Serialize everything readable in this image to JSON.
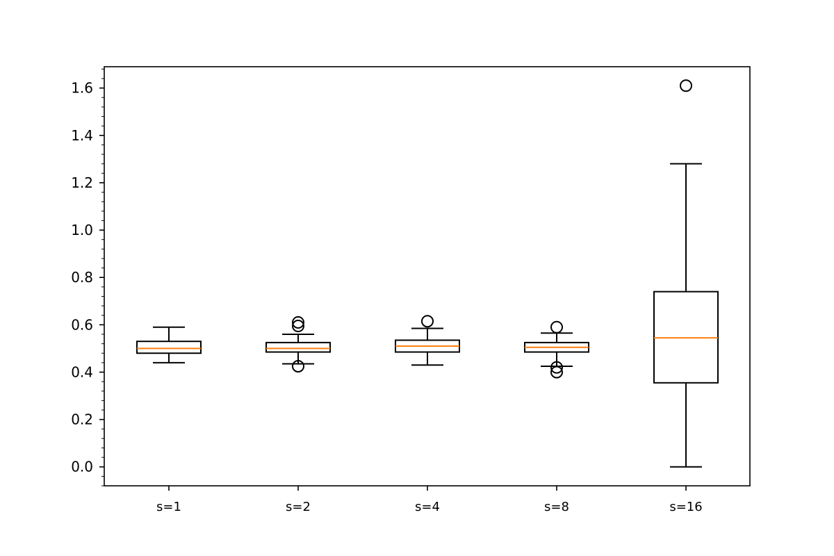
{
  "chart_data": {
    "type": "box",
    "title": "",
    "xlabel": "",
    "ylabel": "",
    "categories": [
      "s=1",
      "s=2",
      "s=4",
      "s=8",
      "s=16"
    ],
    "ylim": [
      -0.08,
      1.69
    ],
    "yticks": [
      0.0,
      0.2,
      0.4,
      0.6,
      0.8,
      1.0,
      1.2,
      1.4,
      1.6
    ],
    "ytick_labels": [
      "0.0",
      "0.2",
      "0.4",
      "0.6",
      "0.8",
      "1.0",
      "1.2",
      "1.4",
      "1.6"
    ],
    "minor_ytick_step": 0.04,
    "grid": false,
    "boxes": [
      {
        "label": "s=1",
        "whisker_low": 0.44,
        "q1": 0.48,
        "median": 0.5,
        "q3": 0.53,
        "whisker_high": 0.59,
        "outliers": []
      },
      {
        "label": "s=2",
        "whisker_low": 0.435,
        "q1": 0.485,
        "median": 0.5,
        "q3": 0.525,
        "whisker_high": 0.56,
        "outliers": [
          0.425,
          0.595,
          0.61
        ]
      },
      {
        "label": "s=4",
        "whisker_low": 0.43,
        "q1": 0.485,
        "median": 0.51,
        "q3": 0.535,
        "whisker_high": 0.585,
        "outliers": [
          0.615
        ]
      },
      {
        "label": "s=8",
        "whisker_low": 0.425,
        "q1": 0.485,
        "median": 0.505,
        "q3": 0.525,
        "whisker_high": 0.565,
        "outliers": [
          0.4,
          0.42,
          0.59
        ]
      },
      {
        "label": "s=16",
        "whisker_low": 0.0,
        "q1": 0.355,
        "median": 0.545,
        "q3": 0.74,
        "whisker_high": 1.28,
        "outliers": [
          1.61
        ]
      }
    ],
    "colors": {
      "box": "#000000",
      "median": "#ff7f0e",
      "outlier": "#000000"
    }
  }
}
